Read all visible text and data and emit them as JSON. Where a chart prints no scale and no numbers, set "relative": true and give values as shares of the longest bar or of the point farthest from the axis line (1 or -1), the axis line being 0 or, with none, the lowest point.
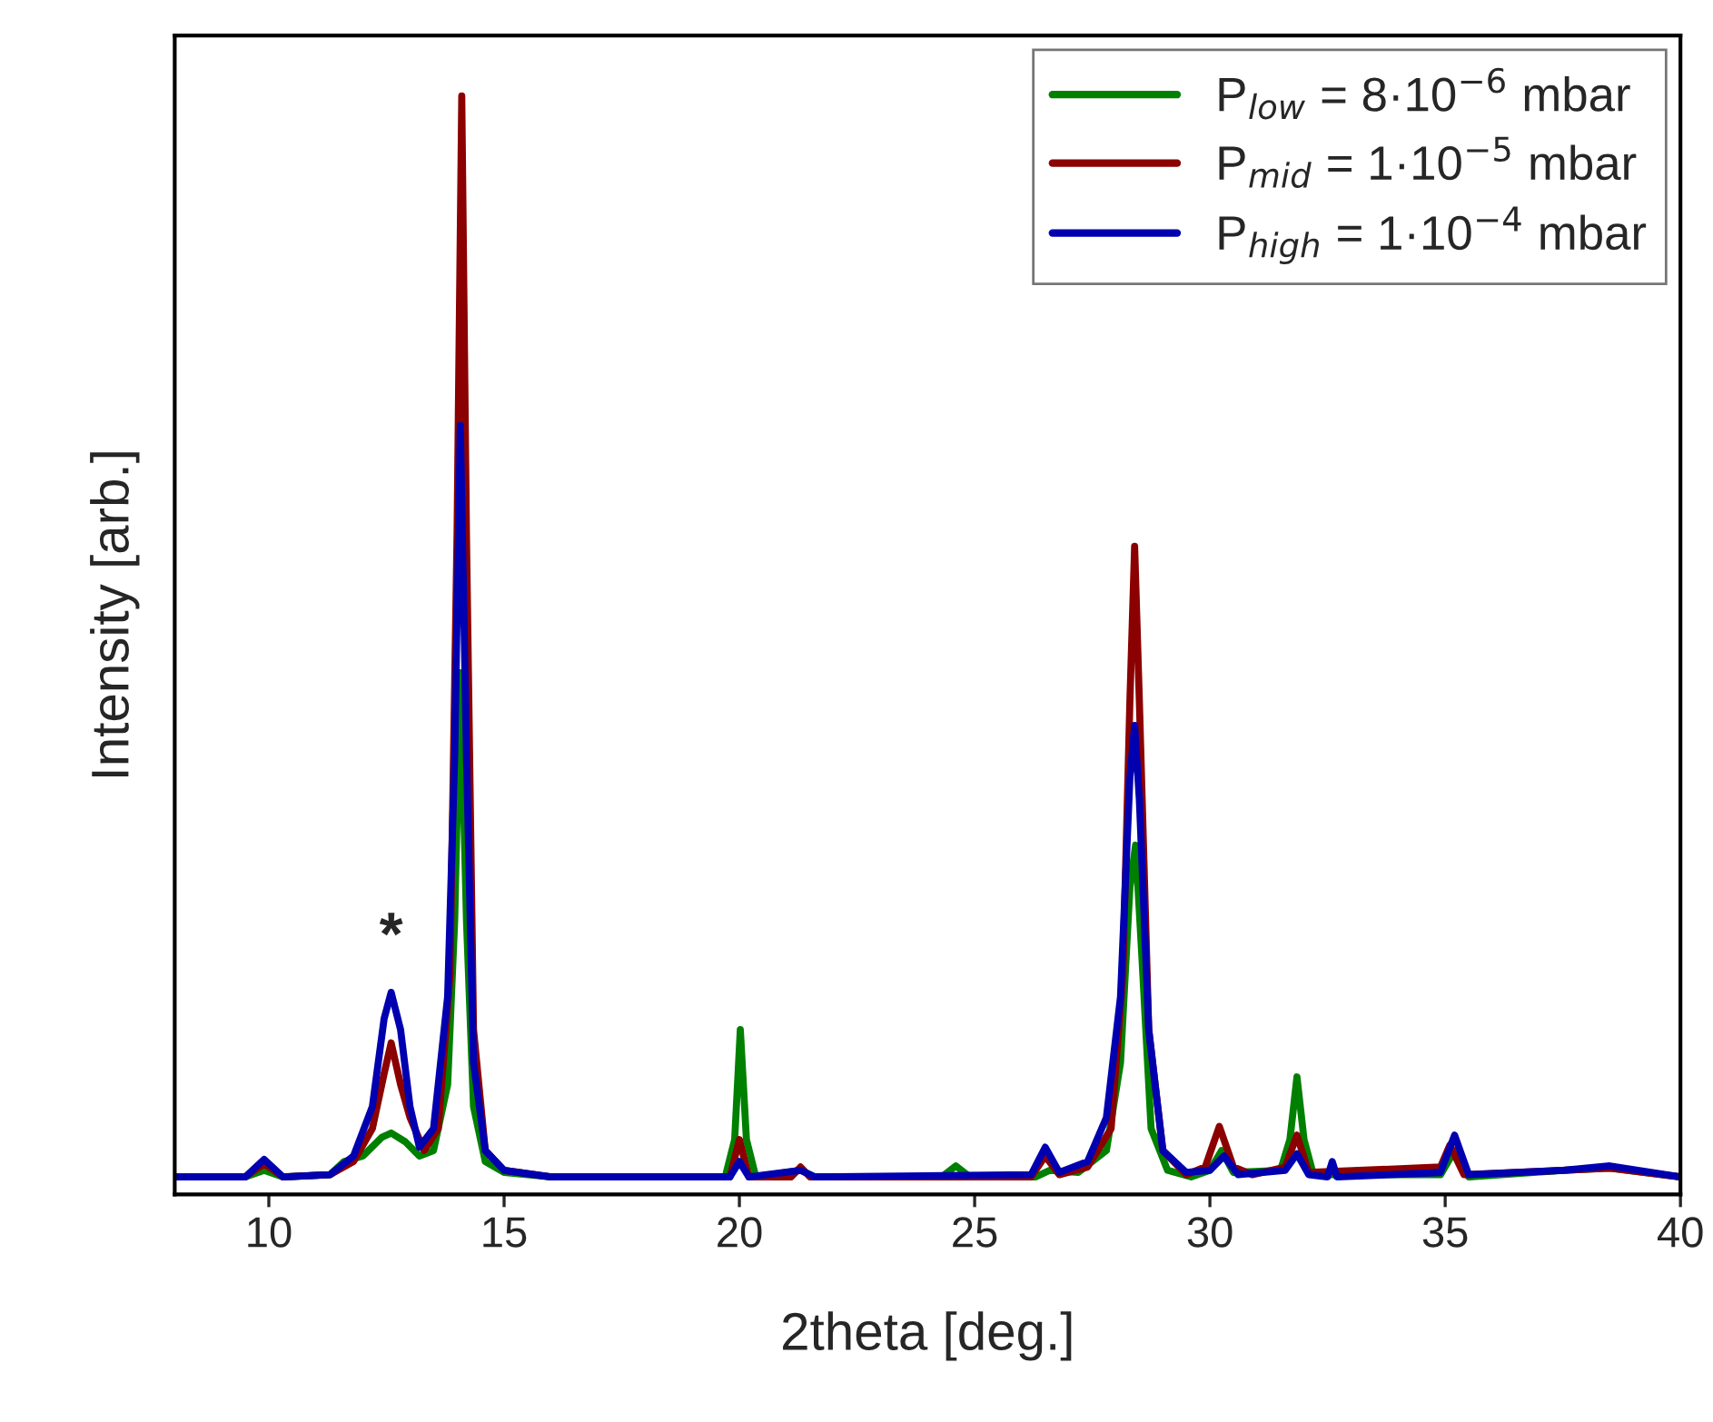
{
  "chart_data": {
    "type": "line",
    "relative": true,
    "xlabel": "2theta [deg.]",
    "ylabel": "Intensity [arb.]",
    "xlim": [
      8,
      40
    ],
    "xticks": [
      10,
      15,
      20,
      25,
      30,
      35,
      40
    ],
    "legend": "top right",
    "grid": false,
    "marker": "none",
    "line_style": "solid",
    "annotations": [
      {
        "text": "*",
        "x": 12.6,
        "y": 0.184
      }
    ],
    "series": [
      {
        "name": "P$_{low}$ = 8·10$^{−6}$ mbar",
        "color": "#008000",
        "x": [
          8.0,
          9.5,
          9.9,
          10.3,
          11.3,
          11.6,
          12.0,
          12.4,
          12.6,
          12.9,
          13.2,
          13.5,
          13.8,
          13.95,
          14.07,
          14.2,
          14.35,
          14.6,
          15.0,
          16.0,
          19.7,
          19.9,
          20.02,
          20.15,
          20.35,
          21.3,
          21.6,
          24.3,
          24.6,
          24.9,
          26.3,
          26.6,
          27.2,
          27.8,
          28.1,
          28.3,
          28.42,
          28.55,
          28.75,
          29.1,
          29.6,
          30.0,
          30.25,
          30.5,
          31.5,
          31.7,
          31.85,
          32.0,
          32.2,
          34.9,
          35.2,
          35.5,
          37.5,
          38.5,
          40.0
        ],
        "values": [
          0.016,
          0.016,
          0.022,
          0.016,
          0.018,
          0.03,
          0.035,
          0.052,
          0.056,
          0.048,
          0.035,
          0.04,
          0.1,
          0.25,
          0.475,
          0.25,
          0.08,
          0.03,
          0.02,
          0.016,
          0.016,
          0.05,
          0.15,
          0.05,
          0.016,
          0.022,
          0.016,
          0.016,
          0.026,
          0.016,
          0.016,
          0.022,
          0.02,
          0.04,
          0.12,
          0.28,
          0.318,
          0.22,
          0.06,
          0.022,
          0.016,
          0.022,
          0.04,
          0.02,
          0.022,
          0.05,
          0.107,
          0.05,
          0.018,
          0.018,
          0.04,
          0.016,
          0.022,
          0.024,
          0.016
        ]
      },
      {
        "name": "P$_{mid}$ = 1·10$^{−5}$ mbar",
        "color": "#8b0000",
        "x": [
          8.0,
          9.5,
          9.9,
          10.3,
          11.3,
          11.8,
          12.2,
          12.45,
          12.6,
          12.8,
          13.0,
          13.3,
          13.6,
          13.85,
          14.0,
          14.1,
          14.2,
          14.35,
          14.6,
          15.0,
          16.0,
          19.8,
          20.0,
          20.2,
          21.1,
          21.3,
          21.5,
          26.2,
          26.5,
          26.8,
          27.4,
          27.9,
          28.15,
          28.3,
          28.4,
          28.5,
          28.7,
          29.0,
          29.5,
          29.9,
          30.2,
          30.5,
          30.9,
          31.6,
          31.85,
          32.1,
          34.9,
          35.1,
          35.4,
          37.5,
          38.5,
          40.0
        ],
        "values": [
          0.016,
          0.016,
          0.028,
          0.016,
          0.018,
          0.03,
          0.06,
          0.11,
          0.138,
          0.1,
          0.07,
          0.04,
          0.06,
          0.2,
          0.6,
          1.0,
          0.6,
          0.15,
          0.04,
          0.022,
          0.016,
          0.016,
          0.05,
          0.016,
          0.016,
          0.025,
          0.016,
          0.016,
          0.035,
          0.018,
          0.025,
          0.06,
          0.2,
          0.45,
          0.59,
          0.45,
          0.15,
          0.04,
          0.018,
          0.025,
          0.062,
          0.025,
          0.018,
          0.025,
          0.054,
          0.02,
          0.025,
          0.045,
          0.018,
          0.022,
          0.024,
          0.016
        ]
      },
      {
        "name": "P$_{high}$ = 1·10$^{−4}$ mbar",
        "color": "#0000b0",
        "x": [
          8.0,
          9.5,
          9.9,
          10.3,
          11.3,
          11.8,
          12.2,
          12.45,
          12.6,
          12.8,
          13.0,
          13.2,
          13.5,
          13.8,
          13.95,
          14.07,
          14.2,
          14.35,
          14.6,
          15.0,
          16.0,
          19.8,
          20.0,
          20.2,
          21.3,
          21.6,
          26.2,
          26.5,
          26.8,
          27.4,
          27.8,
          28.1,
          28.3,
          28.4,
          28.5,
          28.7,
          29.0,
          29.5,
          30.0,
          30.3,
          30.6,
          31.6,
          31.85,
          32.1,
          32.5,
          32.6,
          32.7,
          34.9,
          35.2,
          35.5,
          37.5,
          38.5,
          40.0
        ],
        "values": [
          0.016,
          0.016,
          0.032,
          0.016,
          0.018,
          0.035,
          0.08,
          0.16,
          0.184,
          0.15,
          0.08,
          0.043,
          0.06,
          0.18,
          0.4,
          0.7,
          0.4,
          0.12,
          0.04,
          0.022,
          0.016,
          0.016,
          0.03,
          0.016,
          0.022,
          0.016,
          0.018,
          0.043,
          0.02,
          0.03,
          0.07,
          0.18,
          0.38,
          0.427,
          0.36,
          0.15,
          0.04,
          0.02,
          0.022,
          0.035,
          0.018,
          0.022,
          0.037,
          0.018,
          0.016,
          0.03,
          0.016,
          0.02,
          0.054,
          0.018,
          0.022,
          0.026,
          0.016
        ]
      }
    ]
  }
}
